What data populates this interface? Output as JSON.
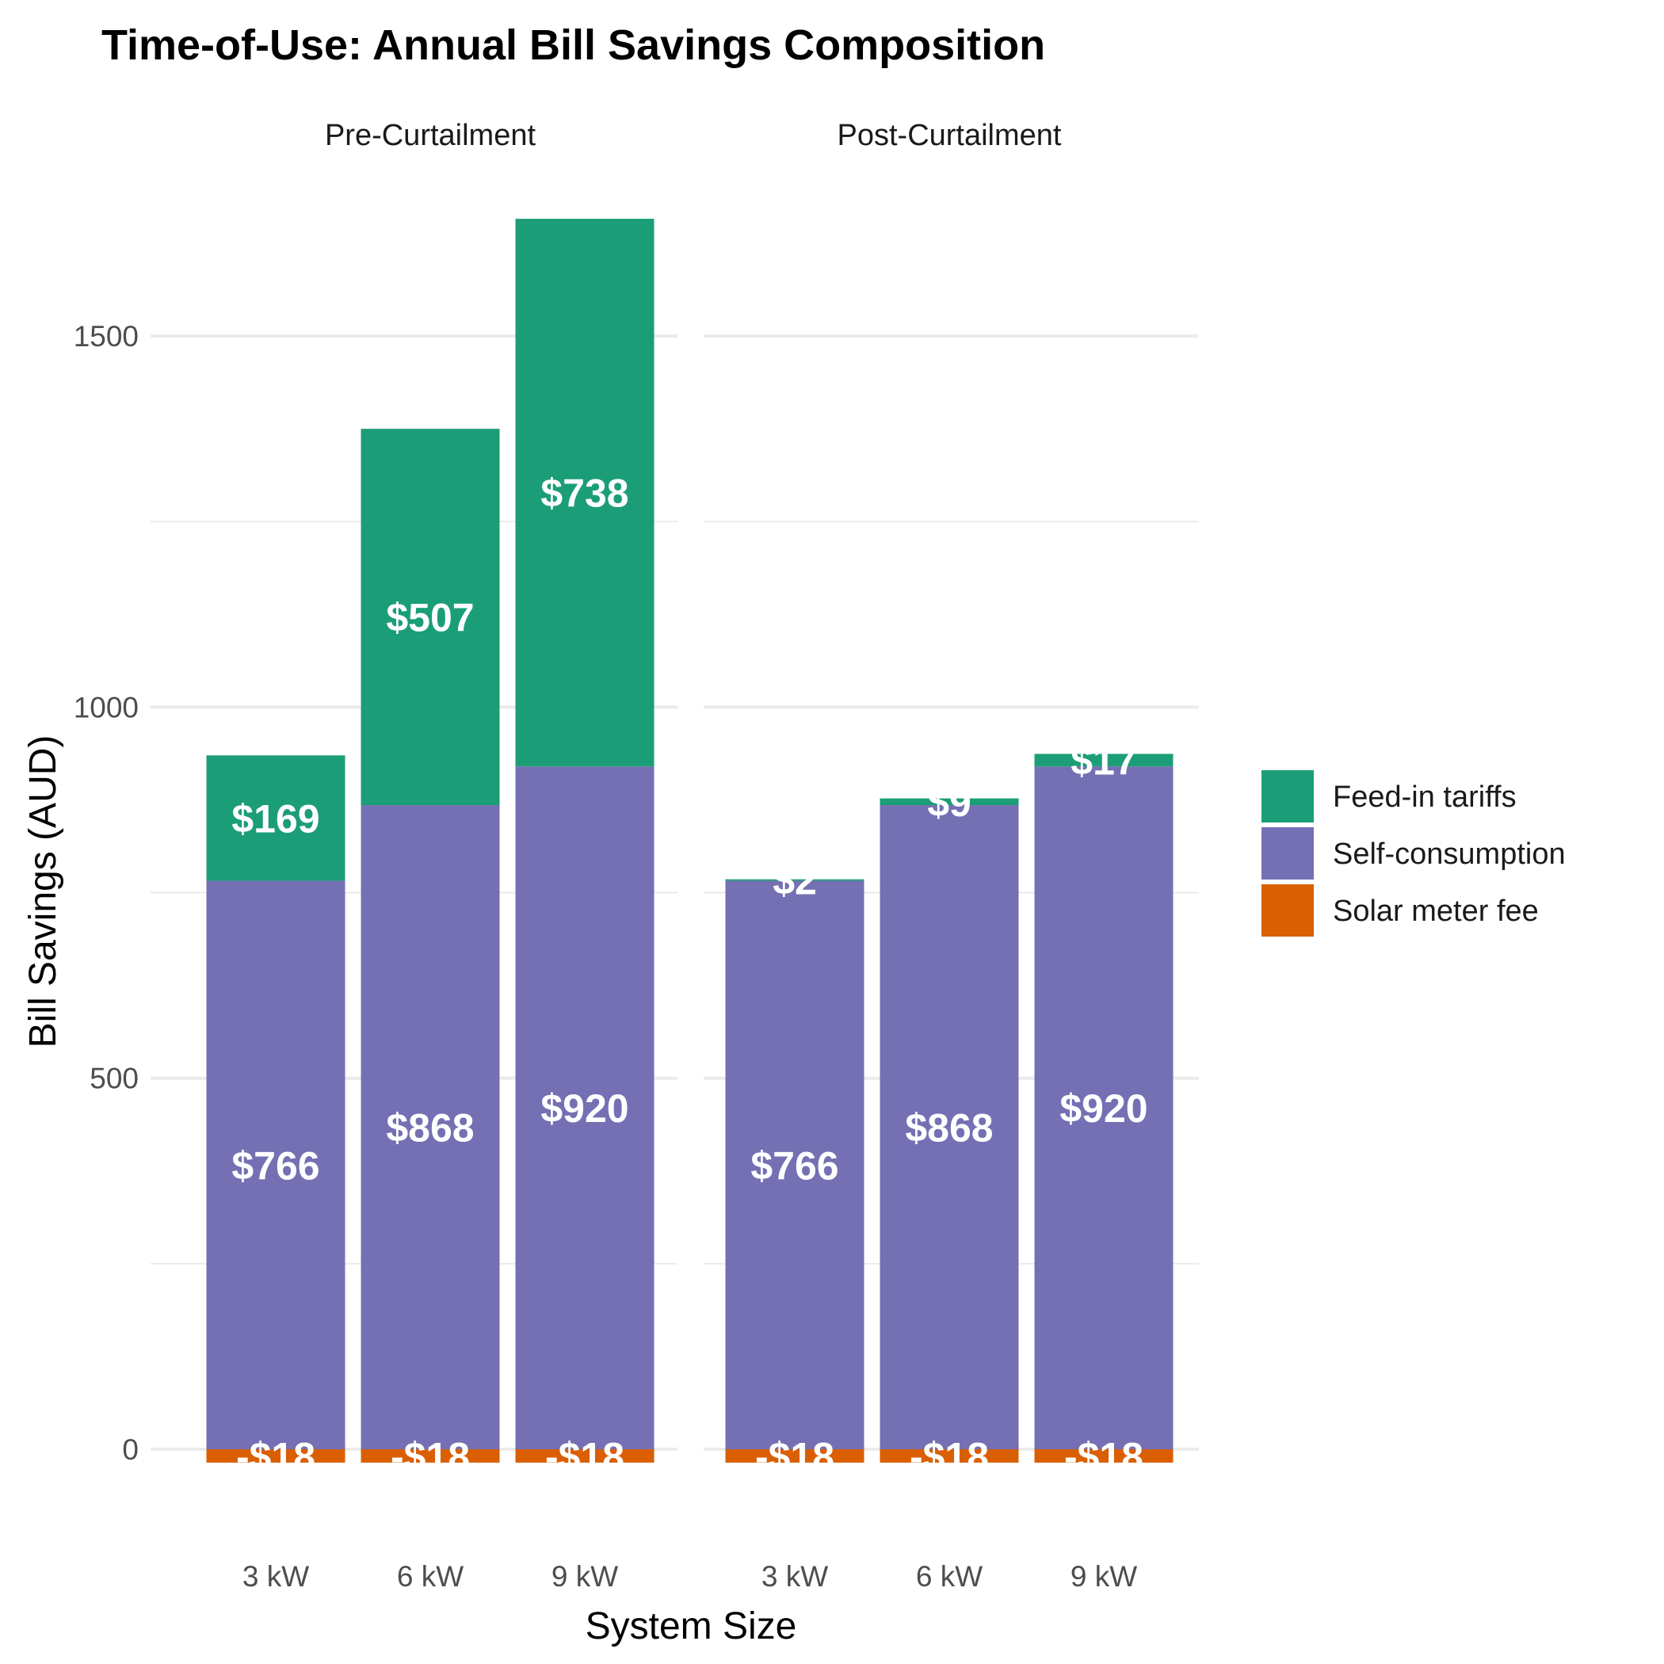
{
  "chart_data": {
    "type": "bar",
    "stacked": true,
    "title": "Time-of-Use: Annual Bill Savings Composition",
    "xlabel": "System Size",
    "ylabel": "Bill Savings (AUD)",
    "facets": [
      "Pre-Curtailment",
      "Post-Curtailment"
    ],
    "categories": [
      "3 kW",
      "6 kW",
      "9 kW"
    ],
    "ylim": [
      -60,
      1820
    ],
    "yticks": [
      0,
      500,
      1000,
      1500
    ],
    "grid": true,
    "legend_position": "right",
    "series": [
      {
        "name": "Solar meter fee",
        "color": "#D95F02",
        "values": [
          [
            -18,
            -18,
            -18
          ],
          [
            -18,
            -18,
            -18
          ]
        ],
        "labels": [
          [
            "-$18",
            "-$18",
            "-$18"
          ],
          [
            "-$18",
            "-$18",
            "-$18"
          ]
        ]
      },
      {
        "name": "Self-consumption",
        "color": "#7570B3",
        "values": [
          [
            766,
            868,
            920
          ],
          [
            766,
            868,
            920
          ]
        ],
        "labels": [
          [
            "$766",
            "$868",
            "$920"
          ],
          [
            "$766",
            "$868",
            "$920"
          ]
        ]
      },
      {
        "name": "Feed-in tariffs",
        "color": "#1B9E77",
        "values": [
          [
            169,
            507,
            738
          ],
          [
            2,
            9,
            17
          ]
        ],
        "labels": [
          [
            "$169",
            "$507",
            "$738"
          ],
          [
            "$2",
            "$9",
            "$17"
          ]
        ]
      }
    ],
    "legend_order": [
      "Feed-in tariffs",
      "Self-consumption",
      "Solar meter fee"
    ]
  }
}
